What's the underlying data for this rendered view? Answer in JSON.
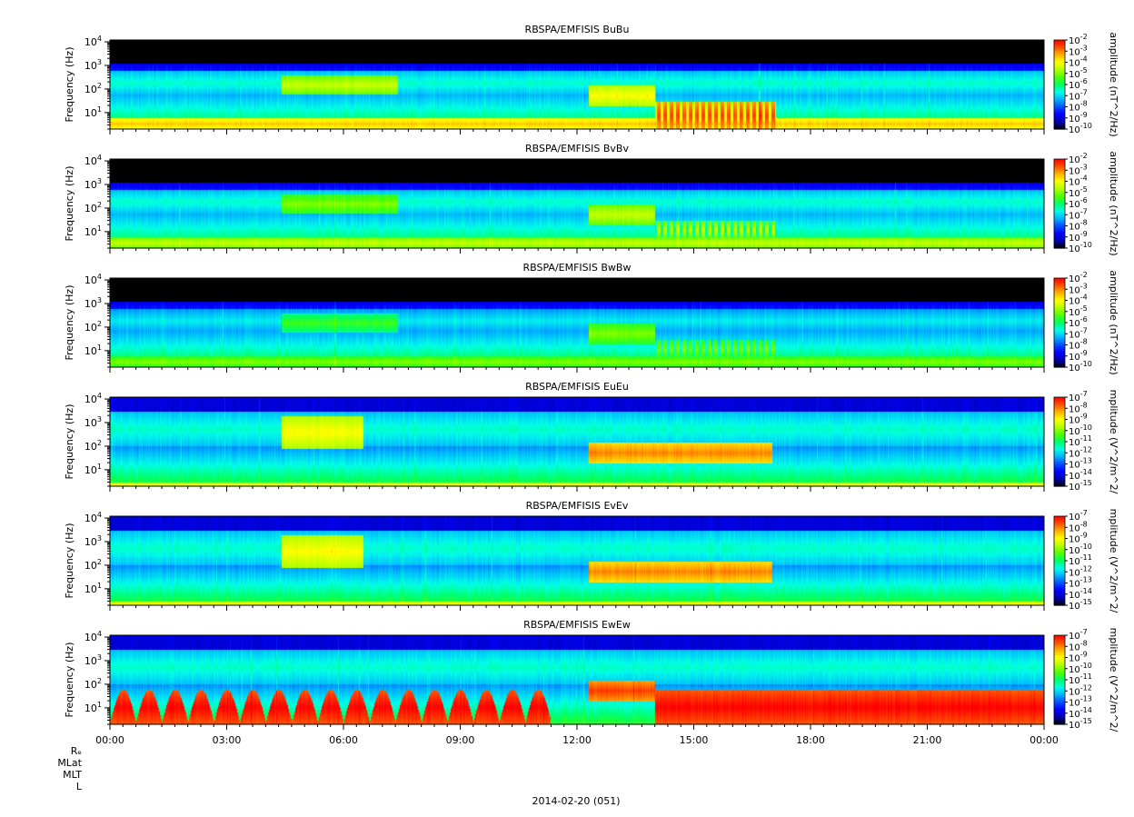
{
  "figure": {
    "date_label": "2014-02-20 (051)",
    "orbit_labels": [
      "Rₑ",
      "MLat",
      "MLT",
      "L"
    ]
  },
  "x_axis": {
    "tick_labels": [
      "00:00",
      "03:00",
      "06:00",
      "09:00",
      "12:00",
      "15:00",
      "18:00",
      "21:00",
      "00:00"
    ],
    "tick_hours": [
      0,
      3,
      6,
      9,
      12,
      15,
      18,
      21,
      24
    ]
  },
  "colors": {
    "colormap": [
      "#000000",
      "#0000b4",
      "#0000ff",
      "#0050ff",
      "#00b4ff",
      "#00ffe6",
      "#00ff64",
      "#50ff00",
      "#b4ff00",
      "#ffff00",
      "#ffb400",
      "#ff5000",
      "#ff0000"
    ]
  },
  "chart_data": [
    {
      "type": "heatmap",
      "title": "RBSPA/EMFISIS  BuBu",
      "ylabel": "Frequency (Hz)",
      "y_scale": "log",
      "ylim": [
        2,
        12000
      ],
      "y_ticks": [
        10,
        100,
        1000,
        10000
      ],
      "x_range_hours": [
        0,
        24
      ],
      "colorbar": {
        "label": "amplitude (nT^2/Hz)",
        "range_exp": [
          -10,
          -2
        ],
        "tick_exps": [
          -2,
          -3,
          -4,
          -5,
          -6,
          -7,
          -8,
          -9,
          -10
        ]
      },
      "features": [
        {
          "desc": "hiss-band",
          "from_h": 0,
          "to_h": 24,
          "f_low": 60,
          "f_high": 600,
          "level_exp": -6.5
        },
        {
          "desc": "low-freq-intense",
          "from_h": 0,
          "to_h": 24,
          "f_low": 2,
          "f_high": 6,
          "level_exp": -3.5
        },
        {
          "desc": "chorus",
          "from_h": 4.4,
          "to_h": 7.4,
          "f_low": 60,
          "f_high": 400,
          "level_exp": -4.5
        },
        {
          "desc": "magnetosonic-bursts",
          "from_h": 14,
          "to_h": 17.1,
          "f_low": 2,
          "f_high": 30,
          "level_exp": -2.5
        },
        {
          "desc": "emic-rising-tone",
          "from_h": 12.3,
          "to_h": 14,
          "f_low": 20,
          "f_high": 150,
          "level_exp": -4
        }
      ]
    },
    {
      "type": "heatmap",
      "title": "RBSPA/EMFISIS  BvBv",
      "ylabel": "Frequency (Hz)",
      "y_scale": "log",
      "ylim": [
        2,
        12000
      ],
      "y_ticks": [
        10,
        100,
        1000,
        10000
      ],
      "x_range_hours": [
        0,
        24
      ],
      "colorbar": {
        "label": "amplitude (nT^2/Hz)",
        "range_exp": [
          -10,
          -2
        ],
        "tick_exps": [
          -2,
          -3,
          -4,
          -5,
          -6,
          -7,
          -8,
          -9,
          -10
        ]
      },
      "features": [
        {
          "desc": "hiss-band",
          "from_h": 0,
          "to_h": 24,
          "f_low": 60,
          "f_high": 600,
          "level_exp": -6.5
        },
        {
          "desc": "low-freq-intense",
          "from_h": 0,
          "to_h": 24,
          "f_low": 2,
          "f_high": 6,
          "level_exp": -4.5
        },
        {
          "desc": "chorus",
          "from_h": 4.4,
          "to_h": 7.4,
          "f_low": 60,
          "f_high": 400,
          "level_exp": -5
        },
        {
          "desc": "magnetosonic-bursts",
          "from_h": 14,
          "to_h": 17.1,
          "f_low": 5,
          "f_high": 30,
          "level_exp": -4.5
        },
        {
          "desc": "emic-rising-tone",
          "from_h": 12.3,
          "to_h": 14,
          "f_low": 20,
          "f_high": 150,
          "level_exp": -4.5
        }
      ]
    },
    {
      "type": "heatmap",
      "title": "RBSPA/EMFISIS  BwBw",
      "ylabel": "Frequency (Hz)",
      "y_scale": "log",
      "ylim": [
        2,
        12000
      ],
      "y_ticks": [
        10,
        100,
        1000,
        10000
      ],
      "x_range_hours": [
        0,
        24
      ],
      "colorbar": {
        "label": "amplitude (nT^2/Hz)",
        "range_exp": [
          -10,
          -2
        ],
        "tick_exps": [
          -2,
          -3,
          -4,
          -5,
          -6,
          -7,
          -8,
          -9,
          -10
        ]
      },
      "features": [
        {
          "desc": "hiss-band",
          "from_h": 0,
          "to_h": 24,
          "f_low": 60,
          "f_high": 600,
          "level_exp": -6.8
        },
        {
          "desc": "low-freq-intense",
          "from_h": 0,
          "to_h": 24,
          "f_low": 2,
          "f_high": 6,
          "level_exp": -5
        },
        {
          "desc": "chorus",
          "from_h": 4.4,
          "to_h": 7.4,
          "f_low": 60,
          "f_high": 400,
          "level_exp": -5.5
        },
        {
          "desc": "magnetosonic-bursts",
          "from_h": 14,
          "to_h": 17.1,
          "f_low": 5,
          "f_high": 30,
          "level_exp": -5
        },
        {
          "desc": "emic-rising-tone",
          "from_h": 12.3,
          "to_h": 14,
          "f_low": 20,
          "f_high": 150,
          "level_exp": -5
        }
      ]
    },
    {
      "type": "heatmap",
      "title": "RBSPA/EMFISIS  EuEu",
      "ylabel": "Frequency (Hz)",
      "y_scale": "log",
      "ylim": [
        2,
        12000
      ],
      "y_ticks": [
        10,
        100,
        1000,
        10000
      ],
      "x_range_hours": [
        0,
        24
      ],
      "colorbar": {
        "label": "mplitude (V^2/m^2/",
        "range_exp": [
          -15,
          -7
        ],
        "tick_exps": [
          -7,
          -8,
          -9,
          -10,
          -11,
          -12,
          -13,
          -14,
          -15
        ]
      },
      "features": [
        {
          "desc": "broadband",
          "from_h": 0,
          "to_h": 24,
          "f_low": 100,
          "f_high": 3000,
          "level_exp": -11.5
        },
        {
          "desc": "low-freq-line",
          "from_h": 0,
          "to_h": 24,
          "f_low": 2,
          "f_high": 3,
          "level_exp": -9
        },
        {
          "desc": "chorus",
          "from_h": 4.4,
          "to_h": 6.5,
          "f_low": 80,
          "f_high": 2000,
          "level_exp": -9
        },
        {
          "desc": "emic-rising-tone",
          "from_h": 12.3,
          "to_h": 17,
          "f_low": 20,
          "f_high": 150,
          "level_exp": -8
        }
      ]
    },
    {
      "type": "heatmap",
      "title": "RBSPA/EMFISIS  EvEv",
      "ylabel": "Frequency (Hz)",
      "y_scale": "log",
      "ylim": [
        2,
        12000
      ],
      "y_ticks": [
        10,
        100,
        1000,
        10000
      ],
      "x_range_hours": [
        0,
        24
      ],
      "colorbar": {
        "label": "mplitude (V^2/m^2/",
        "range_exp": [
          -15,
          -7
        ],
        "tick_exps": [
          -7,
          -8,
          -9,
          -10,
          -11,
          -12,
          -13,
          -14,
          -15
        ]
      },
      "features": [
        {
          "desc": "broadband",
          "from_h": 0,
          "to_h": 24,
          "f_low": 100,
          "f_high": 3000,
          "level_exp": -11.5
        },
        {
          "desc": "low-freq-line",
          "from_h": 0,
          "to_h": 24,
          "f_low": 2,
          "f_high": 3,
          "level_exp": -9
        },
        {
          "desc": "chorus",
          "from_h": 4.4,
          "to_h": 6.5,
          "f_low": 80,
          "f_high": 2000,
          "level_exp": -9
        },
        {
          "desc": "emic-rising-tone",
          "from_h": 12.3,
          "to_h": 17,
          "f_low": 20,
          "f_high": 150,
          "level_exp": -8
        }
      ]
    },
    {
      "type": "heatmap",
      "title": "RBSPA/EMFISIS  EwEw",
      "ylabel": "Frequency (Hz)",
      "y_scale": "log",
      "ylim": [
        2,
        12000
      ],
      "y_ticks": [
        10,
        100,
        1000,
        10000
      ],
      "x_range_hours": [
        0,
        24
      ],
      "colorbar": {
        "label": "mplitude (V^2/m^2/",
        "range_exp": [
          -15,
          -7
        ],
        "tick_exps": [
          -7,
          -8,
          -9,
          -10,
          -11,
          -12,
          -13,
          -14,
          -15
        ]
      },
      "features": [
        {
          "desc": "broadband",
          "from_h": 0,
          "to_h": 24,
          "f_low": 100,
          "f_high": 3000,
          "level_exp": -11.5
        },
        {
          "desc": "spin-arches",
          "from_h": 0,
          "to_h": 11.3,
          "f_low": 2,
          "f_high": 60,
          "level_exp": -7
        },
        {
          "desc": "intense-low-freq",
          "from_h": 14,
          "to_h": 24,
          "f_low": 2,
          "f_high": 60,
          "level_exp": -7
        },
        {
          "desc": "emic-rising-tone",
          "from_h": 12.3,
          "to_h": 14,
          "f_low": 20,
          "f_high": 150,
          "level_exp": -7.5
        }
      ]
    }
  ]
}
